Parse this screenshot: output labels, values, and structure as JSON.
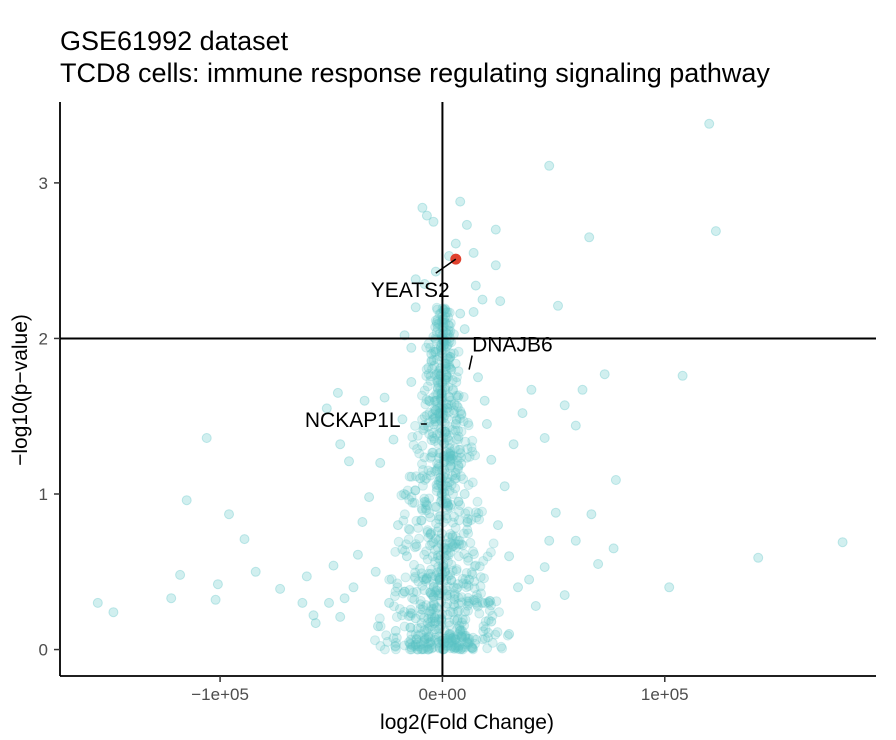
{
  "chart_data": {
    "type": "scatter",
    "title": "GSE61992 dataset",
    "subtitle": "TCD8 cells: immune response regulating signaling pathway",
    "xlabel": "log2(Fold Change)",
    "ylabel": "−log10(p−value)",
    "xlim": [
      -172000,
      195000
    ],
    "ylim": [
      -0.17,
      3.52
    ],
    "x_ticks": [
      {
        "value": -100000,
        "label": "−1e+05"
      },
      {
        "value": 0,
        "label": "0e+00"
      },
      {
        "value": 100000,
        "label": "1e+05"
      }
    ],
    "y_ticks": [
      {
        "value": 0,
        "label": "0"
      },
      {
        "value": 1,
        "label": "1"
      },
      {
        "value": 2,
        "label": "2"
      },
      {
        "value": 3,
        "label": "3"
      }
    ],
    "reference_lines": {
      "vertical_x": 0,
      "horizontal_y": 2
    },
    "grid": false,
    "legend": "none",
    "colors": {
      "points": "#5bc4c6",
      "highlight": "#e0422f",
      "muted": "#e3a09c",
      "axis": "#000000"
    },
    "series": [
      {
        "role": "background",
        "points": [
          [
            -155000,
            0.3
          ],
          [
            -148000,
            0.24
          ],
          [
            -122000,
            0.33
          ],
          [
            -118000,
            0.48
          ],
          [
            -115000,
            0.96
          ],
          [
            -106000,
            1.36
          ],
          [
            -101000,
            0.42
          ],
          [
            -102000,
            0.32
          ],
          [
            -96000,
            0.87
          ],
          [
            -89000,
            0.71
          ],
          [
            -84000,
            0.5
          ],
          [
            -73000,
            0.39
          ],
          [
            -63000,
            0.3
          ],
          [
            -61000,
            0.47
          ],
          [
            -58000,
            0.22
          ],
          [
            -57000,
            0.17
          ],
          [
            -51000,
            0.3
          ],
          [
            -49000,
            0.54
          ],
          [
            -46000,
            0.21
          ],
          [
            -44000,
            0.33
          ],
          [
            -52000,
            1.55
          ],
          [
            -47000,
            1.65
          ],
          [
            -35000,
            1.6
          ],
          [
            -42000,
            1.21
          ],
          [
            -46000,
            1.32
          ],
          [
            -38000,
            0.61
          ],
          [
            -33000,
            0.98
          ],
          [
            -28000,
            1.2
          ],
          [
            -22000,
            1.35
          ],
          [
            -26000,
            1.62
          ],
          [
            -18000,
            1.48
          ],
          [
            -14000,
            1.72
          ],
          [
            -17000,
            2.02
          ],
          [
            -14000,
            1.94
          ],
          [
            -12000,
            2.2
          ],
          [
            -8000,
            2.35
          ],
          [
            -12000,
            2.38
          ],
          [
            -9000,
            2.84
          ],
          [
            -7000,
            2.79
          ],
          [
            -4000,
            2.75
          ],
          [
            -3000,
            2.43
          ],
          [
            3000,
            2.53
          ],
          [
            6000,
            2.61
          ],
          [
            8000,
            2.88
          ],
          [
            11000,
            2.73
          ],
          [
            14000,
            2.55
          ],
          [
            24000,
            2.7
          ],
          [
            24000,
            2.47
          ],
          [
            26000,
            2.24
          ],
          [
            18000,
            2.25
          ],
          [
            14000,
            2.17
          ],
          [
            15000,
            2.34
          ],
          [
            8000,
            2.16
          ],
          [
            10000,
            2.06
          ],
          [
            48000,
            3.11
          ],
          [
            52000,
            2.21
          ],
          [
            66000,
            2.65
          ],
          [
            123000,
            2.69
          ],
          [
            120000,
            3.38
          ],
          [
            73000,
            1.77
          ],
          [
            108000,
            1.76
          ],
          [
            63000,
            1.67
          ],
          [
            55000,
            1.57
          ],
          [
            60000,
            1.44
          ],
          [
            46000,
            1.36
          ],
          [
            78000,
            1.09
          ],
          [
            67000,
            0.87
          ],
          [
            51000,
            0.88
          ],
          [
            48000,
            0.7
          ],
          [
            46000,
            0.53
          ],
          [
            39000,
            0.45
          ],
          [
            60000,
            0.7
          ],
          [
            77000,
            0.65
          ],
          [
            70000,
            0.55
          ],
          [
            55000,
            0.35
          ],
          [
            102000,
            0.4
          ],
          [
            142000,
            0.59
          ],
          [
            180000,
            0.69
          ],
          [
            40000,
            1.67
          ],
          [
            36000,
            1.52
          ],
          [
            32000,
            1.32
          ],
          [
            28000,
            1.05
          ],
          [
            22000,
            1.22
          ],
          [
            19000,
            1.6
          ],
          [
            16000,
            1.75
          ],
          [
            20000,
            1.45
          ],
          [
            25000,
            0.8
          ],
          [
            30000,
            0.6
          ],
          [
            34000,
            0.4
          ],
          [
            18000,
            0.3
          ],
          [
            12000,
            0.45
          ],
          [
            10000,
            1.0
          ],
          [
            -10000,
            1.1
          ],
          [
            -20000,
            0.8
          ],
          [
            -30000,
            0.5
          ],
          [
            -24000,
            0.3
          ],
          [
            -16000,
            0.6
          ],
          [
            -6000,
            1.6
          ],
          [
            -5000,
            1.9
          ],
          [
            2000,
            1.95
          ],
          [
            4000,
            1.8
          ],
          [
            6000,
            1.45
          ],
          [
            -8000,
            0.95
          ],
          [
            -36000,
            0.82
          ],
          [
            -29000,
            0.15
          ],
          [
            -21000,
            0.12
          ],
          [
            -12000,
            0.2
          ],
          [
            8000,
            0.12
          ],
          [
            22000,
            0.18
          ],
          [
            30000,
            0.1
          ],
          [
            42000,
            0.28
          ],
          [
            -40000,
            0.4
          ]
        ]
      },
      {
        "role": "highlighted",
        "points": [
          [
            6000,
            2.51
          ]
        ]
      }
    ],
    "labels": [
      {
        "text": "YEATS2",
        "x": 6000,
        "y": 2.51
      },
      {
        "text": "DNAJB6",
        "x": 12000,
        "y": 1.8
      },
      {
        "text": "NCKAP1L",
        "x": -7000,
        "y": 1.45
      }
    ]
  }
}
